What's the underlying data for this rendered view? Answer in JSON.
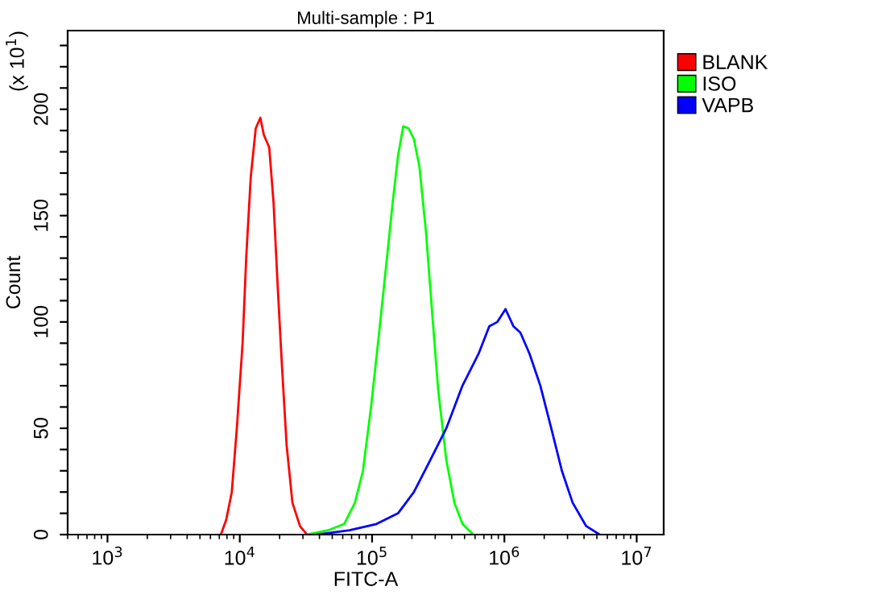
{
  "chart_data": {
    "type": "line",
    "title": "Multi-sample : P1",
    "xlabel": "FITC-A",
    "ylabel": "Count",
    "annotations": [
      "(x 10$^{1}$)"
    ],
    "log": "x",
    "xlim": [
      500,
      16000000
    ],
    "xticks": [
      {
        "value": 1000,
        "label": "10$^{3}$"
      },
      {
        "value": 10000,
        "label": "10$^{4}$"
      },
      {
        "value": 100000,
        "label": "10$^{5}$"
      },
      {
        "value": 1000000,
        "label": "10$^{6}$"
      },
      {
        "value": 10000000,
        "label": "10$^{7}$"
      }
    ],
    "ylim": [
      0,
      237
    ],
    "yticks": [
      0,
      {
        "value": 10,
        "label": null
      },
      {
        "value": 20,
        "label": null
      },
      {
        "value": 30,
        "label": null
      },
      {
        "value": 40,
        "label": null
      },
      50,
      {
        "value": 60,
        "label": null
      },
      {
        "value": 70,
        "label": null
      },
      {
        "value": 80,
        "label": null
      },
      {
        "value": 90,
        "label": null
      },
      100,
      {
        "value": 110,
        "label": null
      },
      {
        "value": 120,
        "label": null
      },
      {
        "value": 130,
        "label": null
      },
      {
        "value": 140,
        "label": null
      },
      150,
      {
        "value": 160,
        "label": null
      },
      {
        "value": 170,
        "label": null
      },
      {
        "value": 180,
        "label": null
      },
      {
        "value": 190,
        "label": null
      },
      200,
      {
        "value": 210,
        "label": null
      },
      {
        "value": 220,
        "label": null
      },
      {
        "value": 230,
        "label": null
      }
    ],
    "grid": false,
    "legend": "top right",
    "marker": "none",
    "line_style": "solid",
    "series": [
      {
        "name": "BLANK",
        "color": "#ff0000",
        "x": [
          7200,
          7900,
          8700,
          9500,
          10500,
          11200,
          12100,
          13200,
          14300,
          15200,
          16700,
          18000,
          19300,
          20800,
          22600,
          25000,
          28500,
          32200
        ],
        "values": [
          0,
          7,
          20,
          50,
          90,
          131,
          168,
          191,
          196,
          188,
          182,
          156,
          118,
          80,
          42,
          15,
          4,
          0
        ]
      },
      {
        "name": "ISO",
        "color": "#00ff00",
        "x": [
          31900,
          46400,
          61500,
          74200,
          85300,
          98200,
          113000,
          130000,
          143000,
          157000,
          172000,
          189000,
          207000,
          228000,
          255000,
          288000,
          316000,
          364000,
          419000,
          482000,
          581000
        ],
        "values": [
          0,
          2,
          5,
          15,
          30,
          60,
          95,
          131,
          156,
          178,
          192,
          191,
          186,
          173,
          143,
          100,
          68,
          35,
          15,
          5,
          0
        ]
      },
      {
        "name": "VAPB",
        "color": "#0000ff",
        "x": [
          38500,
          67500,
          108000,
          157000,
          207000,
          275000,
          364000,
          482000,
          638000,
          769000,
          885000,
          1020000,
          1170000,
          1320000,
          1550000,
          1870000,
          2260000,
          2720000,
          3280000,
          4150000,
          5250000
        ],
        "values": [
          0,
          2,
          5,
          10,
          20,
          35,
          50,
          70,
          85,
          98,
          100,
          106,
          98,
          95,
          85,
          70,
          50,
          30,
          15,
          4,
          0
        ]
      }
    ]
  }
}
